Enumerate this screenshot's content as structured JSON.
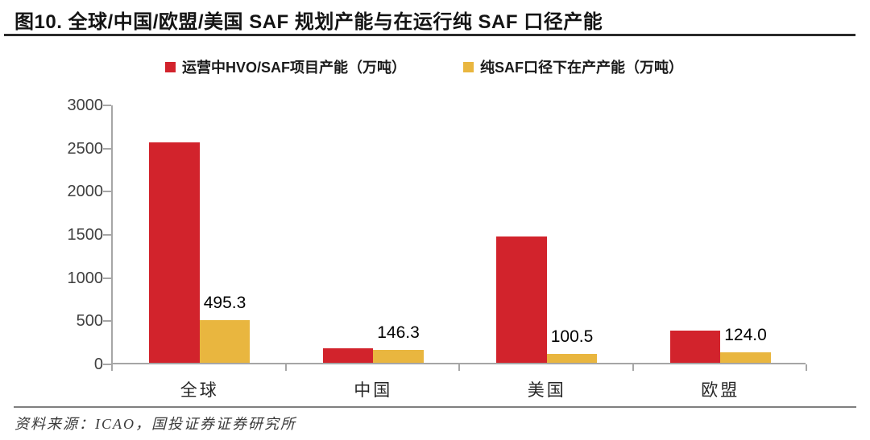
{
  "title": "图10. 全球/中国/欧盟/美国 SAF 规划产能与在运行纯 SAF 口径产能",
  "source": "资料来源：ICAO，国投证券证券研究所",
  "colors": {
    "series1_red": "#d2232c",
    "series2_gold": "#e9b63f",
    "axis_gray": "#a6a6a6",
    "title_rule": "#2a2a2a",
    "footer_rule": "#7f7f7f"
  },
  "chart_data": {
    "type": "bar",
    "title": "全球/中国/欧盟/美国 SAF 规划产能与在运行纯 SAF 口径产能",
    "categories": [
      "全球",
      "中国",
      "美国",
      "欧盟"
    ],
    "series": [
      {
        "name": "运营中HVO/SAF项目产能（万吨）",
        "color": "#d2232c",
        "values": [
          2550,
          165,
          1460,
          370
        ],
        "value_labels_visible": false
      },
      {
        "name": "纯SAF口径下在产产能（万吨）",
        "color": "#e9b63f",
        "values": [
          495.3,
          146.3,
          100.5,
          124.0
        ],
        "value_labels_visible": true,
        "value_labels": [
          "495.3",
          "146.3",
          "100.5",
          "124.0"
        ]
      }
    ],
    "ylim": [
      0,
      3000
    ],
    "yticks": [
      0,
      500,
      1000,
      1500,
      2000,
      2500,
      3000
    ],
    "grid": false,
    "legend_position": "top"
  }
}
